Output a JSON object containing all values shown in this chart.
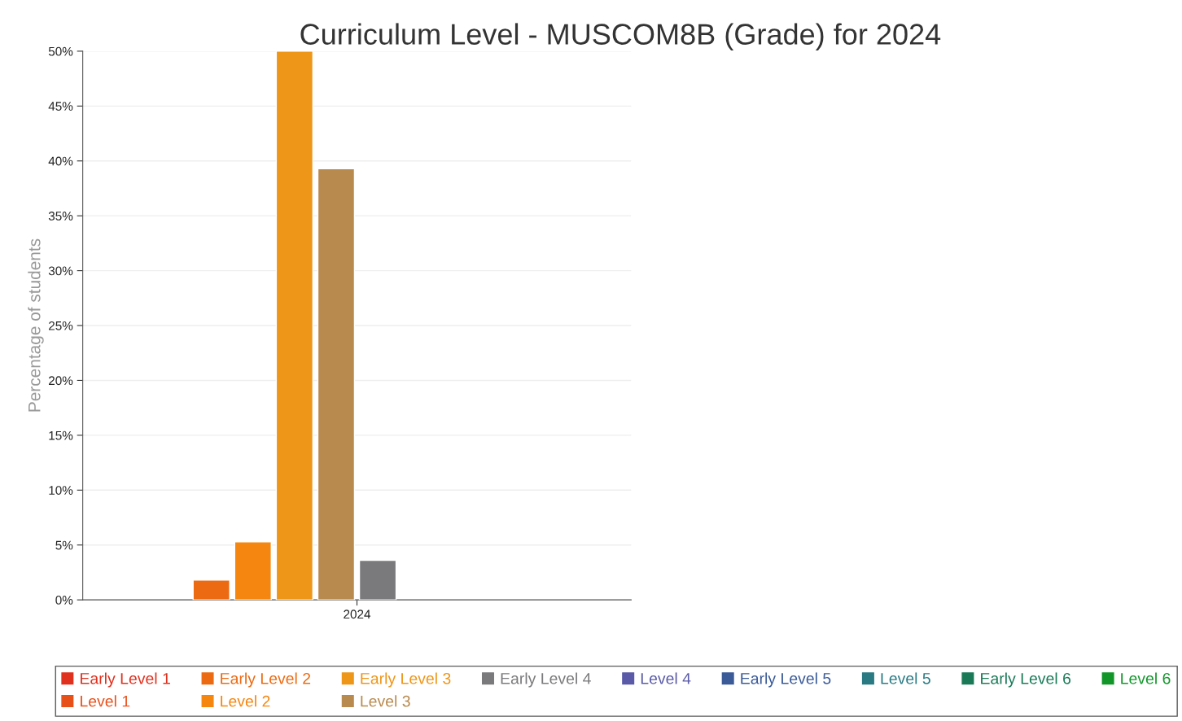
{
  "chart_data": {
    "type": "bar",
    "title": "Curriculum Level - MUSCOM8B (Grade) for 2024",
    "ylabel": "Percentage of students",
    "categories": [
      "2024"
    ],
    "series": [
      {
        "name": "Early Level 1",
        "color": "#e0301e",
        "values": [
          null
        ]
      },
      {
        "name": "Level 1",
        "color": "#e8501a",
        "values": [
          null
        ]
      },
      {
        "name": "Early Level 2",
        "color": "#ec6a12",
        "values": [
          1.8
        ]
      },
      {
        "name": "Level 2",
        "color": "#f5860f",
        "values": [
          5.3
        ]
      },
      {
        "name": "Early Level 3",
        "color": "#ee9618",
        "values": [
          50
        ]
      },
      {
        "name": "Level 3",
        "color": "#b98a4e",
        "values": [
          39.3
        ]
      },
      {
        "name": "Early Level 4",
        "color": "#7a7a7c",
        "values": [
          3.6
        ]
      },
      {
        "name": "Level 4",
        "color": "#5a5aa8",
        "values": [
          null
        ]
      },
      {
        "name": "Early Level 5",
        "color": "#3a5a98",
        "values": [
          null
        ]
      },
      {
        "name": "Level 5",
        "color": "#2a7a84",
        "values": [
          null
        ]
      },
      {
        "name": "Early Level 6",
        "color": "#1a7a58",
        "values": [
          null
        ]
      },
      {
        "name": "Level 6",
        "color": "#12962a",
        "values": [
          null
        ]
      }
    ],
    "ylim": [
      0,
      50
    ],
    "yticks": [
      {
        "value": 0,
        "label": "0%"
      },
      {
        "value": 5,
        "label": "5%"
      },
      {
        "value": 10,
        "label": "10%"
      },
      {
        "value": 15,
        "label": "15%"
      },
      {
        "value": 20,
        "label": "20%"
      },
      {
        "value": 25,
        "label": "25%"
      },
      {
        "value": 30,
        "label": "30%"
      },
      {
        "value": 35,
        "label": "35%"
      },
      {
        "value": 40,
        "label": "40%"
      },
      {
        "value": 45,
        "label": "45%"
      },
      {
        "value": 50,
        "label": "50%"
      }
    ],
    "grid": "y",
    "legend": "bottom"
  }
}
